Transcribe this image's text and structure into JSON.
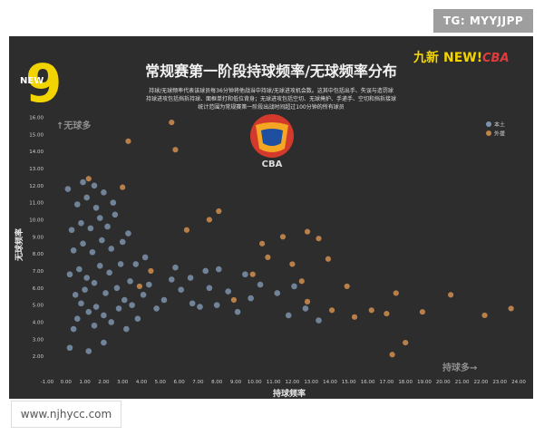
{
  "watermark_top": "TG: MYYJJPP",
  "watermark_bottom": "www.njhycc.com",
  "logo_left": "NEW",
  "logo_right_1": "九新",
  "logo_right_2": "NEW!",
  "logo_right_3": "CBA",
  "cba_label": "CBA",
  "colors": {
    "bg": "#2d2d2d",
    "series_a": "#7d93ad",
    "series_b": "#c0844a",
    "text": "#e8e8e8",
    "muted": "#9a9a9a"
  },
  "chart_data": {
    "type": "scatter",
    "title": "常规赛第一阶段持球频率/无球频率分布",
    "subtitle": [
      "持球/无球频率代表该球员每36分钟将他战当中持球/无球进攻机会数。这其中包括出手、失误与造罚球",
      "持球进攻包括挡拆持球、面框单打和低位背身；无球进攻包括空切、无球掩护、手递手、空切和挡拆接球",
      "统计范围为常规赛第一阶段出战时间超过100分钟的所有球员"
    ],
    "xlabel": "持球频率",
    "ylabel": "无球频率",
    "annot_top": "↑无球多",
    "annot_right": "持球多→",
    "legend": [
      "本土",
      "外援"
    ],
    "legend_position": "top-right",
    "xlim": [
      -1,
      24
    ],
    "ylim": [
      1,
      16.5
    ],
    "xticks": [
      "-1.00",
      "0.00",
      "1.00",
      "2.00",
      "3.00",
      "4.00",
      "5.00",
      "6.00",
      "7.00",
      "8.00",
      "9.00",
      "10.00",
      "11.00",
      "12.00",
      "13.00",
      "14.00",
      "15.00",
      "16.00",
      "17.00",
      "18.00",
      "19.00",
      "20.00",
      "21.00",
      "22.00",
      "23.00",
      "24.00"
    ],
    "yticks": [
      "2.00",
      "3.00",
      "4.00",
      "5.00",
      "6.00",
      "7.00",
      "8.00",
      "9.00",
      "10.00",
      "11.00",
      "12.00",
      "13.00",
      "14.00",
      "15.00",
      "16.00"
    ],
    "series": [
      {
        "name": "本土",
        "points": [
          [
            0.2,
            2.5
          ],
          [
            1.2,
            2.3
          ],
          [
            0.4,
            3.6
          ],
          [
            0.6,
            4.2
          ],
          [
            0.8,
            5.1
          ],
          [
            1.2,
            4.6
          ],
          [
            1.6,
            4.9
          ],
          [
            2.0,
            4.4
          ],
          [
            2.4,
            4.0
          ],
          [
            2.8,
            4.8
          ],
          [
            0.5,
            5.6
          ],
          [
            1.0,
            5.9
          ],
          [
            1.5,
            6.3
          ],
          [
            2.1,
            5.7
          ],
          [
            2.7,
            6.0
          ],
          [
            3.1,
            5.3
          ],
          [
            0.2,
            6.8
          ],
          [
            0.7,
            7.1
          ],
          [
            1.1,
            6.6
          ],
          [
            1.8,
            7.3
          ],
          [
            2.3,
            6.9
          ],
          [
            2.9,
            7.4
          ],
          [
            3.4,
            6.4
          ],
          [
            0.4,
            8.2
          ],
          [
            0.9,
            8.6
          ],
          [
            1.4,
            8.1
          ],
          [
            1.9,
            8.8
          ],
          [
            2.4,
            8.3
          ],
          [
            3.0,
            8.7
          ],
          [
            0.3,
            9.4
          ],
          [
            0.8,
            9.8
          ],
          [
            1.3,
            9.5
          ],
          [
            1.8,
            10.1
          ],
          [
            2.2,
            9.6
          ],
          [
            2.6,
            10.3
          ],
          [
            3.3,
            9.2
          ],
          [
            0.6,
            10.9
          ],
          [
            1.1,
            11.3
          ],
          [
            1.6,
            10.7
          ],
          [
            2.0,
            11.6
          ],
          [
            2.5,
            11.0
          ],
          [
            0.1,
            11.8
          ],
          [
            0.9,
            12.2
          ],
          [
            1.5,
            12.0
          ],
          [
            3.5,
            5.0
          ],
          [
            3.8,
            4.2
          ],
          [
            4.1,
            5.6
          ],
          [
            4.4,
            6.2
          ],
          [
            4.8,
            4.8
          ],
          [
            5.2,
            5.3
          ],
          [
            5.6,
            6.5
          ],
          [
            6.1,
            5.9
          ],
          [
            6.6,
            6.6
          ],
          [
            7.1,
            4.9
          ],
          [
            7.6,
            6.0
          ],
          [
            8.1,
            7.1
          ],
          [
            8.6,
            5.8
          ],
          [
            9.1,
            4.6
          ],
          [
            9.8,
            5.4
          ],
          [
            10.3,
            6.2
          ],
          [
            11.2,
            5.7
          ],
          [
            12.1,
            6.1
          ],
          [
            12.7,
            4.8
          ],
          [
            13.4,
            4.1
          ],
          [
            8.0,
            5.0
          ],
          [
            7.4,
            7.0
          ],
          [
            3.7,
            7.4
          ],
          [
            4.2,
            7.8
          ],
          [
            1.5,
            3.8
          ],
          [
            2.0,
            2.8
          ],
          [
            3.2,
            3.6
          ],
          [
            5.8,
            7.2
          ],
          [
            9.5,
            6.8
          ],
          [
            11.8,
            4.4
          ],
          [
            6.7,
            5.1
          ]
        ]
      },
      {
        "name": "外援",
        "points": [
          [
            5.6,
            15.7
          ],
          [
            3.3,
            14.6
          ],
          [
            5.8,
            14.1
          ],
          [
            1.2,
            12.4
          ],
          [
            3.0,
            11.9
          ],
          [
            8.1,
            10.5
          ],
          [
            7.6,
            10.0
          ],
          [
            6.4,
            9.4
          ],
          [
            11.5,
            9.0
          ],
          [
            12.8,
            9.3
          ],
          [
            13.4,
            8.9
          ],
          [
            10.4,
            8.6
          ],
          [
            10.7,
            7.8
          ],
          [
            12.0,
            7.4
          ],
          [
            13.9,
            7.7
          ],
          [
            9.9,
            6.8
          ],
          [
            12.5,
            6.4
          ],
          [
            14.9,
            6.1
          ],
          [
            17.5,
            5.7
          ],
          [
            20.4,
            5.6
          ],
          [
            18.9,
            4.6
          ],
          [
            17.0,
            4.5
          ],
          [
            15.3,
            4.3
          ],
          [
            14.1,
            4.7
          ],
          [
            22.2,
            4.4
          ],
          [
            23.6,
            4.8
          ],
          [
            18.0,
            2.8
          ],
          [
            17.3,
            2.1
          ],
          [
            4.5,
            7.0
          ],
          [
            3.9,
            6.1
          ],
          [
            12.8,
            5.2
          ],
          [
            16.2,
            4.7
          ],
          [
            8.9,
            5.3
          ]
        ]
      }
    ]
  }
}
